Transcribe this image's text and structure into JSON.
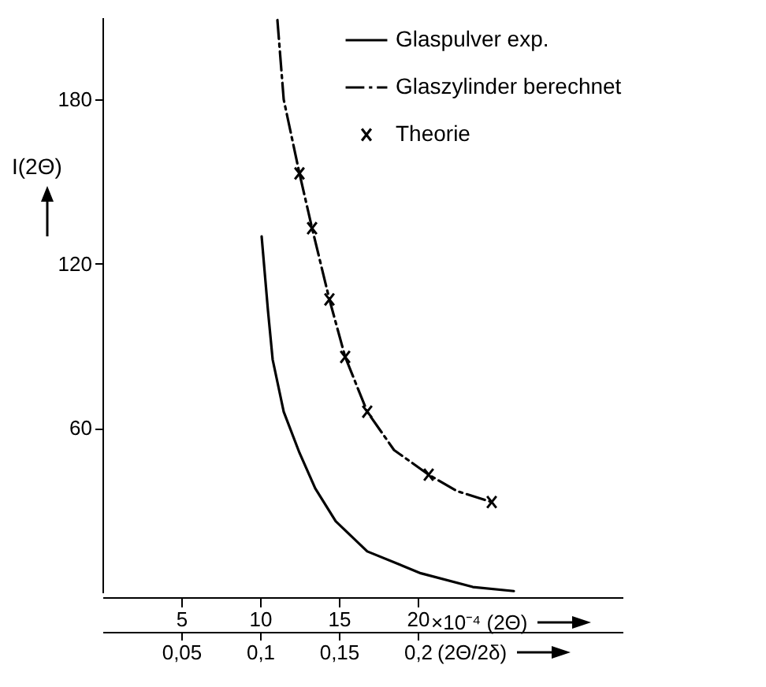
{
  "chart_data": {
    "type": "line",
    "xlabel": "×10⁻⁴ (2Θ)",
    "x2label": "(2Θ/2δ)",
    "ylabel": "I(2Θ)",
    "xlim": [
      0,
      33
    ],
    "xticks": [
      5,
      10,
      15,
      20
    ],
    "x2lim": [
      0,
      0.33
    ],
    "x2ticks": [
      {
        "value": 0.05,
        "label": "0,05"
      },
      {
        "value": 0.1,
        "label": "0,1"
      },
      {
        "value": 0.15,
        "label": "0,15"
      },
      {
        "value": 0.2,
        "label": "0,2"
      }
    ],
    "ylim": [
      0,
      210
    ],
    "yticks": [
      60,
      120,
      180
    ],
    "legend": "top right",
    "series": [
      {
        "name": "Glaspulver exp.",
        "line_style": "solid",
        "color": "#000000",
        "x": [
          10.1,
          10.5,
          10.8,
          11.5,
          12.5,
          13.5,
          14.8,
          16.8,
          20.2,
          23.5,
          26.1
        ],
        "values": [
          130,
          103,
          85,
          66,
          51,
          38,
          26,
          15,
          7,
          2,
          0.5
        ]
      },
      {
        "name": "Glaszylinder berechnet",
        "line_style": "dashed",
        "color": "#000000",
        "x": [
          11.1,
          11.5,
          12.5,
          13.3,
          14.4,
          15.4,
          16.8,
          18.5,
          20.7,
          22.5,
          24.7
        ],
        "values": [
          209,
          180,
          153,
          133,
          107,
          86,
          66,
          52,
          43,
          37,
          33
        ]
      },
      {
        "name": "Theorie",
        "type": "scatter",
        "marker": "cross",
        "color": "#000000",
        "x": [
          12.5,
          13.3,
          14.4,
          15.4,
          16.8,
          20.7,
          24.7
        ],
        "values": [
          153,
          133,
          107,
          86,
          66,
          43,
          33
        ]
      }
    ]
  }
}
